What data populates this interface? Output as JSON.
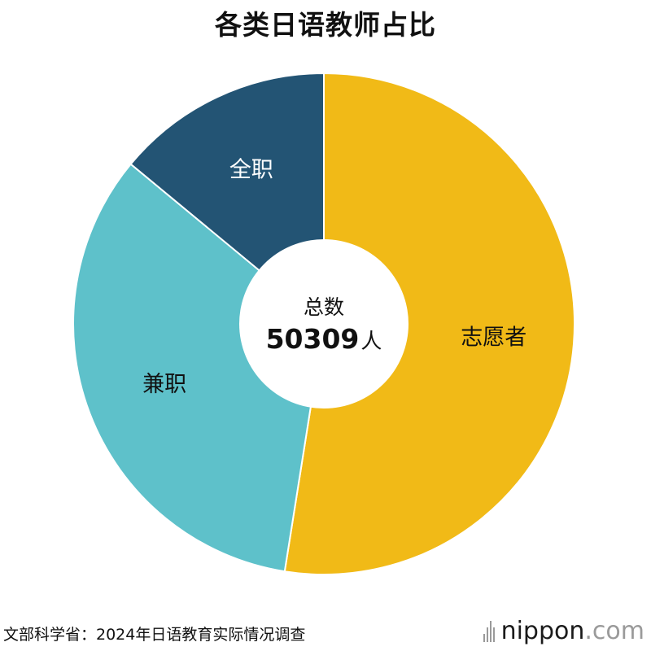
{
  "chart_data": {
    "type": "pie",
    "title": "各类日语教师占比",
    "categories": [
      "志愿者",
      "兼职",
      "全职"
    ],
    "values": [
      52.5,
      33.5,
      14.0
    ],
    "value_unit": "%",
    "colors": [
      "#f1ba17",
      "#5ec1ca",
      "#235474"
    ],
    "label_colors": [
      "#111111",
      "#111111",
      "#ffffff"
    ],
    "start": "top",
    "direction": "clockwise",
    "center_label": "总数",
    "center_value": "50309",
    "center_unit": "人"
  },
  "source": "文部科学省：2024年日语教育实际情况调查",
  "brand": {
    "name": "nippon",
    "dot": ".",
    "tld": "com"
  }
}
